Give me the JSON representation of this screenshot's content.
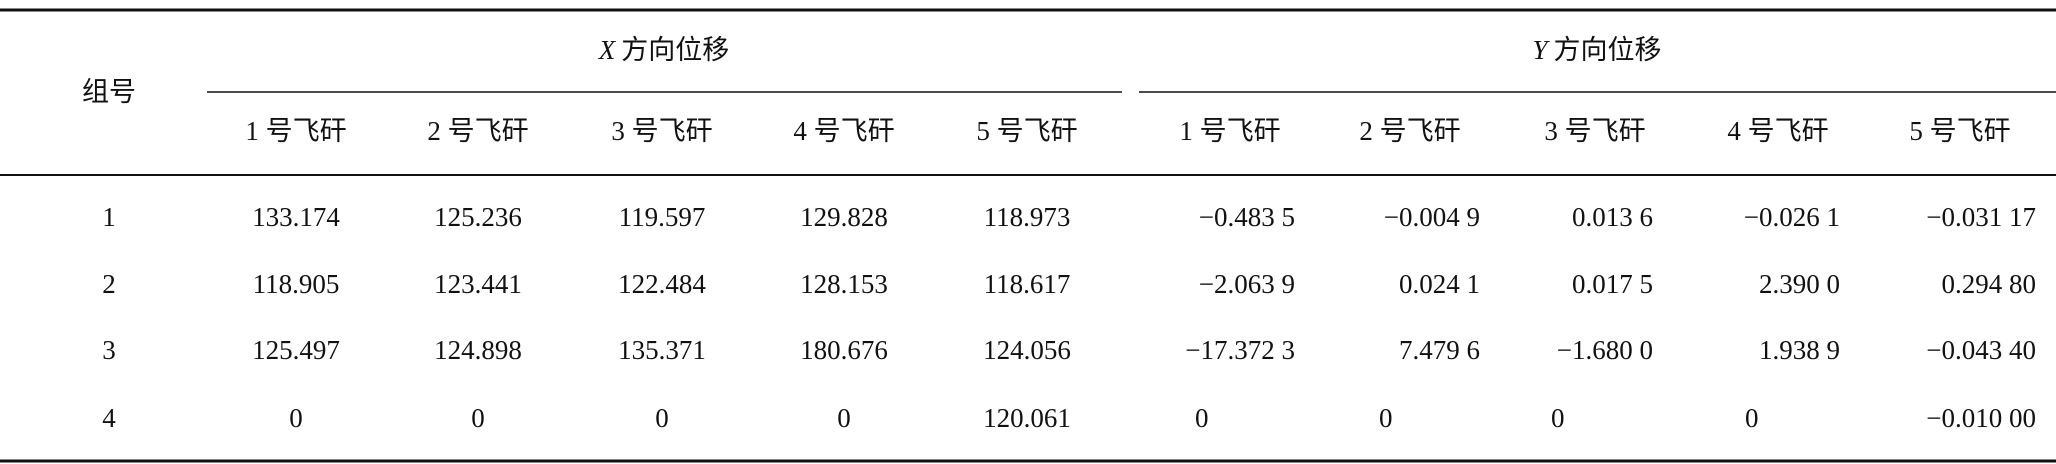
{
  "table": {
    "corner": "组号",
    "groups": [
      {
        "var": "X",
        "label": "方向位移",
        "columns": [
          "1 号飞矸",
          "2 号飞矸",
          "3 号飞矸",
          "4 号飞矸",
          "5 号飞矸"
        ]
      },
      {
        "var": "Y",
        "label": "方向位移",
        "columns": [
          "1 号飞矸",
          "2 号飞矸",
          "3 号飞矸",
          "4 号飞矸",
          "5 号飞矸"
        ]
      }
    ],
    "rows": [
      [
        "1",
        "133.174",
        "125.236",
        "119.597",
        "129.828",
        "118.973",
        "−0.483 5",
        "−0.004 9",
        "0.013 6",
        "−0.026 1",
        "−0.031 17"
      ],
      [
        "2",
        "118.905",
        "123.441",
        "122.484",
        "128.153",
        "118.617",
        "−2.063 9",
        "0.024 1",
        "0.017 5",
        "2.390 0",
        "0.294 80"
      ],
      [
        "3",
        "125.497",
        "124.898",
        "135.371",
        "180.676",
        "124.056",
        "−17.372 3",
        "7.479 6",
        "−1.680 0",
        "1.938 9",
        "−0.043 40"
      ],
      [
        "4",
        "0",
        "0",
        "0",
        "0",
        "120.061",
        "0",
        "0",
        "0",
        "0",
        "−0.010 00"
      ]
    ]
  }
}
